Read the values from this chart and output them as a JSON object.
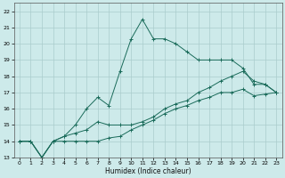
{
  "xlabel": "Humidex (Indice chaleur)",
  "xlim": [
    -0.5,
    23.5
  ],
  "ylim": [
    13,
    22.5
  ],
  "yticks": [
    13,
    14,
    15,
    16,
    17,
    18,
    19,
    20,
    21,
    22
  ],
  "xticks": [
    0,
    1,
    2,
    3,
    4,
    5,
    6,
    7,
    8,
    9,
    10,
    11,
    12,
    13,
    14,
    15,
    16,
    17,
    18,
    19,
    20,
    21,
    22,
    23
  ],
  "background_color": "#cdeaea",
  "grid_color": "#aacccc",
  "line_color": "#1a6b5a",
  "lines": [
    {
      "x": [
        0,
        1,
        2,
        3,
        4,
        5,
        6,
        7,
        8,
        9,
        10,
        11,
        12,
        13,
        14,
        15,
        16,
        17,
        18,
        19,
        20,
        21,
        22,
        23
      ],
      "y": [
        14,
        14,
        13,
        14,
        14.3,
        15,
        16,
        16.7,
        16.2,
        18.3,
        20.3,
        21.5,
        20.3,
        20.3,
        20,
        19.5,
        19,
        19,
        19,
        19,
        18.5,
        17.5,
        17.5,
        17
      ]
    },
    {
      "x": [
        0,
        1,
        2,
        3,
        4,
        5,
        6,
        7,
        8,
        9,
        10,
        11,
        12,
        13,
        14,
        15,
        16,
        17,
        18,
        19,
        20,
        21,
        22,
        23
      ],
      "y": [
        14,
        14,
        13,
        14,
        14.3,
        14.5,
        14.7,
        15.2,
        15,
        15,
        15,
        15.2,
        15.5,
        16,
        16.3,
        16.5,
        17,
        17.3,
        17.7,
        18,
        18.3,
        17.7,
        17.5,
        17
      ]
    },
    {
      "x": [
        0,
        1,
        2,
        3,
        4,
        5,
        6,
        7,
        8,
        9,
        10,
        11,
        12,
        13,
        14,
        15,
        16,
        17,
        18,
        19,
        20,
        21,
        22,
        23
      ],
      "y": [
        14,
        14,
        13,
        14,
        14,
        14,
        14,
        14,
        14.2,
        14.3,
        14.7,
        15,
        15.3,
        15.7,
        16,
        16.2,
        16.5,
        16.7,
        17,
        17,
        17.2,
        16.8,
        16.9,
        17
      ]
    }
  ]
}
